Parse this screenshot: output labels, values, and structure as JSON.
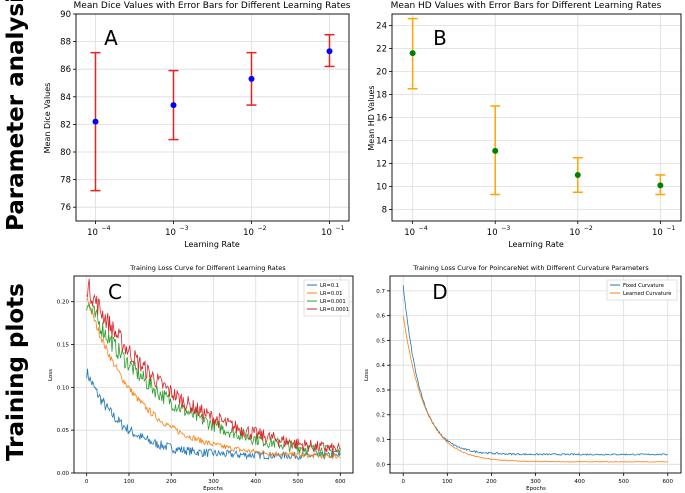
{
  "side_labels": {
    "top": "Parameter analysis",
    "bottom": "Training plots"
  },
  "chart_data": [
    {
      "id": "A",
      "panel_letter": "A",
      "type": "scatter",
      "title": "Mean Dice Values with Error Bars for Different Learning Rates",
      "xlabel": "Learning Rate",
      "ylabel": "Mean Dice Values",
      "x_scale": "log",
      "x": [
        0.0001,
        0.001,
        0.01,
        0.1
      ],
      "x_tick_labels": [
        "10",
        "10",
        "10",
        "10"
      ],
      "x_tick_exponents": [
        "−4",
        "−3",
        "−2",
        "−1"
      ],
      "y_ticks": [
        "76",
        "78",
        "80",
        "82",
        "84",
        "86",
        "88",
        "90"
      ],
      "ylim": [
        75.0,
        90.0
      ],
      "grid": true,
      "marker_color": "#0000ff",
      "errorbar_color": "#e8221f",
      "series": [
        {
          "values": [
            82.2,
            83.4,
            85.3,
            87.3
          ],
          "err_low": [
            77.2,
            80.9,
            83.4,
            86.2
          ],
          "err_high": [
            87.2,
            85.9,
            87.2,
            88.5
          ]
        }
      ]
    },
    {
      "id": "B",
      "panel_letter": "B",
      "type": "scatter",
      "title": "Mean HD Values with Error Bars for Different Learning Rates",
      "xlabel": "Learning Rate",
      "ylabel": "Mean HD Values",
      "x_scale": "log",
      "x": [
        0.0001,
        0.001,
        0.01,
        0.1
      ],
      "x_tick_labels": [
        "10",
        "10",
        "10",
        "10"
      ],
      "x_tick_exponents": [
        "−4",
        "−3",
        "−2",
        "−1"
      ],
      "y_ticks": [
        "8",
        "10",
        "12",
        "14",
        "16",
        "18",
        "20",
        "22",
        "24"
      ],
      "ylim": [
        7.0,
        25.0
      ],
      "grid": true,
      "marker_color": "#008000",
      "errorbar_color": "#ffa500",
      "series": [
        {
          "values": [
            21.6,
            13.1,
            11.0,
            10.1
          ],
          "err_low": [
            18.5,
            9.3,
            9.5,
            9.3
          ],
          "err_high": [
            24.6,
            17.0,
            12.5,
            11.0
          ]
        }
      ]
    },
    {
      "id": "C",
      "panel_letter": "C",
      "type": "line",
      "title": "Training Loss Curve for Different Learning Rates",
      "xlabel": "Epochs",
      "ylabel": "Loss",
      "x_ticks": [
        "0",
        "100",
        "200",
        "300",
        "400",
        "500",
        "600"
      ],
      "y_ticks": [
        "0.00",
        "0.05",
        "0.10",
        "0.15",
        "0.20"
      ],
      "xlim": [
        -30,
        630
      ],
      "ylim": [
        0.0,
        0.23
      ],
      "grid": true,
      "legend": "top-right",
      "series": [
        {
          "name": "LR=0.1",
          "color": "#1f77b4",
          "start": 0.118,
          "end": 0.02,
          "tau": 85,
          "noise": 0.006
        },
        {
          "name": "LR=0.01",
          "color": "#ff7f0e",
          "start": 0.205,
          "end": 0.018,
          "tau": 120,
          "noise": 0.004
        },
        {
          "name": "LR=0.001",
          "color": "#2ca02c",
          "start": 0.2,
          "end": 0.015,
          "tau": 200,
          "noise": 0.01
        },
        {
          "name": "LR=0.0001",
          "color": "#d62728",
          "start": 0.22,
          "end": 0.015,
          "tau": 210,
          "noise": 0.011
        }
      ]
    },
    {
      "id": "D",
      "panel_letter": "D",
      "type": "line",
      "title": "Training Loss Curve for PoincareNet with Different Curvature Parameters",
      "xlabel": "Epochs",
      "ylabel": "Loss",
      "x_ticks": [
        "0",
        "100",
        "200",
        "300",
        "400",
        "500",
        "600"
      ],
      "y_ticks": [
        "0.0",
        "0.1",
        "0.2",
        "0.3",
        "0.4",
        "0.5",
        "0.6",
        "0.7"
      ],
      "xlim": [
        -30,
        630
      ],
      "ylim": [
        -0.035,
        0.76
      ],
      "grid": true,
      "legend": "top-right",
      "series": [
        {
          "name": "Fixed Curvature",
          "color": "#1f77b4",
          "start": 0.72,
          "end": 0.04,
          "tau": 40,
          "noise": 0.004
        },
        {
          "name": "Learned Curvature",
          "color": "#ff7f0e",
          "start": 0.6,
          "end": 0.01,
          "tau": 50,
          "noise": 0.002
        }
      ]
    }
  ]
}
